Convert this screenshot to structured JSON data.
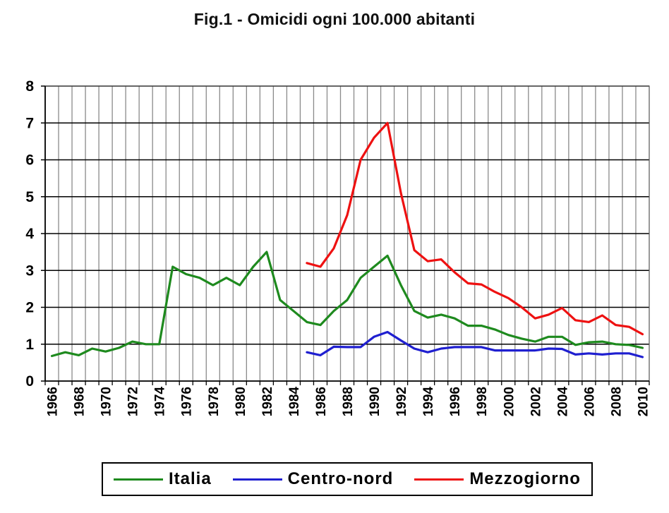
{
  "chart_data": {
    "type": "line",
    "title": "Fig.1 - Omicidi ogni 100.000 abitanti",
    "xlabel": "",
    "ylabel": "",
    "ylim": [
      0,
      8
    ],
    "yticks": [
      "0",
      "1",
      "2",
      "3",
      "4",
      "5",
      "6",
      "7",
      "8"
    ],
    "xlim": [
      1966,
      2010
    ],
    "xticks": [
      "1966",
      "1968",
      "1970",
      "1972",
      "1974",
      "1976",
      "1978",
      "1980",
      "1982",
      "1984",
      "1986",
      "1988",
      "1990",
      "1992",
      "1994",
      "1996",
      "1998",
      "2000",
      "2002",
      "2004",
      "2006",
      "2008",
      "2010"
    ],
    "grid": true,
    "legend_position": "bottom",
    "series": [
      {
        "name": "Italia",
        "color": "#1e8a1e",
        "x": [
          1966,
          1967,
          1968,
          1969,
          1970,
          1971,
          1972,
          1973,
          1974,
          1975,
          1976,
          1977,
          1978,
          1979,
          1980,
          1981,
          1982,
          1983,
          1984,
          1985,
          1986,
          1987,
          1988,
          1989,
          1990,
          1991,
          1992,
          1993,
          1994,
          1995,
          1996,
          1997,
          1998,
          1999,
          2000,
          2001,
          2002,
          2003,
          2004,
          2005,
          2006,
          2007,
          2008,
          2009,
          2010
        ],
        "values": [
          0.68,
          0.78,
          0.7,
          0.88,
          0.8,
          0.9,
          1.07,
          1.0,
          1.0,
          3.1,
          2.9,
          2.8,
          2.6,
          2.8,
          2.6,
          3.1,
          3.5,
          2.2,
          1.9,
          1.6,
          1.52,
          1.9,
          2.2,
          2.8,
          3.1,
          3.4,
          2.6,
          1.9,
          1.72,
          1.8,
          1.7,
          1.5,
          1.5,
          1.4,
          1.25,
          1.15,
          1.07,
          1.2,
          1.2,
          0.98,
          1.05,
          1.07,
          1.0,
          0.98,
          0.9
        ]
      },
      {
        "name": "Centro-nord",
        "color": "#1f1fd0",
        "x": [
          1985,
          1986,
          1987,
          1988,
          1989,
          1990,
          1991,
          1992,
          1993,
          1994,
          1995,
          1996,
          1997,
          1998,
          1999,
          2000,
          2001,
          2002,
          2003,
          2004,
          2005,
          2006,
          2007,
          2008,
          2009,
          2010
        ],
        "values": [
          0.78,
          0.7,
          0.93,
          0.92,
          0.92,
          1.2,
          1.33,
          1.1,
          0.88,
          0.78,
          0.88,
          0.92,
          0.92,
          0.92,
          0.83,
          0.83,
          0.83,
          0.83,
          0.88,
          0.87,
          0.72,
          0.75,
          0.72,
          0.75,
          0.75,
          0.65
        ]
      },
      {
        "name": "Mezzogiorno",
        "color": "#ee1111",
        "x": [
          1985,
          1986,
          1987,
          1988,
          1989,
          1990,
          1991,
          1992,
          1993,
          1994,
          1995,
          1996,
          1997,
          1998,
          1999,
          2000,
          2001,
          2002,
          2003,
          2004,
          2005,
          2006,
          2007,
          2008,
          2009,
          2010
        ],
        "values": [
          3.2,
          3.1,
          3.6,
          4.5,
          6.0,
          6.6,
          7.0,
          5.1,
          3.55,
          3.25,
          3.3,
          2.95,
          2.65,
          2.62,
          2.42,
          2.25,
          2.0,
          1.7,
          1.8,
          1.98,
          1.65,
          1.6,
          1.78,
          1.52,
          1.47,
          1.27
        ]
      }
    ]
  }
}
